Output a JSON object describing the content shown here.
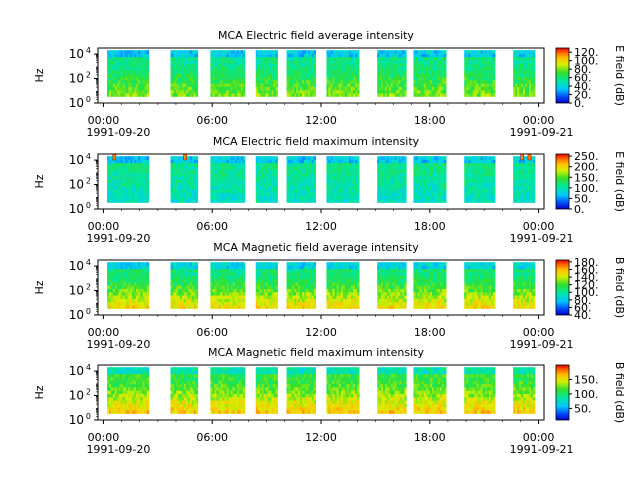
{
  "chart_data": [
    {
      "type": "heatmap",
      "title": "MCA  Electric field average intensity",
      "ylabel": "Hz",
      "yscale": "log",
      "ylim": [
        1,
        31623
      ],
      "yticks": [
        1,
        100,
        10000
      ],
      "ytick_labels": [
        {
          "base": "10",
          "exp": "0"
        },
        {
          "base": "10",
          "exp": "2"
        },
        {
          "base": "10",
          "exp": "4"
        }
      ],
      "x_ticks": [
        "00:00",
        "06:00",
        "12:00",
        "18:00",
        "00:00"
      ],
      "x_dates": [
        "1991-09-20",
        "1991-09-21"
      ],
      "colorbar": {
        "label": "E field (dB)",
        "ticks": [
          "0.",
          "20.",
          "40.",
          "60.",
          "80.",
          "100.",
          "120."
        ],
        "range": [
          0,
          130
        ]
      },
      "data_segments_hours": [
        [
          0.2,
          1.8
        ],
        [
          1.8,
          2.5
        ],
        [
          3.7,
          4.1
        ],
        [
          4.1,
          5.2
        ],
        [
          5.9,
          7.8
        ],
        [
          8.4,
          9.6
        ],
        [
          10.1,
          11.7
        ],
        [
          12.3,
          14.1
        ],
        [
          15.1,
          16.7
        ],
        [
          17.1,
          18.9
        ],
        [
          19.9,
          21.6
        ],
        [
          22.6,
          23.8
        ]
      ],
      "base_level": 55,
      "low_freq_level": 80,
      "spikes_hours": []
    },
    {
      "type": "heatmap",
      "title": "MCA  Electric field maximum intensity",
      "ylabel": "Hz",
      "yscale": "log",
      "ylim": [
        1,
        31623
      ],
      "yticks": [
        1,
        100,
        10000
      ],
      "ytick_labels": [
        {
          "base": "10",
          "exp": "0"
        },
        {
          "base": "10",
          "exp": "2"
        },
        {
          "base": "10",
          "exp": "4"
        }
      ],
      "x_ticks": [
        "00:00",
        "06:00",
        "12:00",
        "18:00",
        "00:00"
      ],
      "x_dates": [
        "1991-09-20",
        "1991-09-21"
      ],
      "colorbar": {
        "label": "E field (dB)",
        "ticks": [
          "0.",
          "50.",
          "100.",
          "150.",
          "200.",
          "250."
        ],
        "range": [
          0,
          260
        ]
      },
      "data_segments_hours": [
        [
          0.2,
          1.8
        ],
        [
          1.8,
          2.5
        ],
        [
          3.7,
          4.1
        ],
        [
          4.1,
          5.2
        ],
        [
          5.9,
          7.8
        ],
        [
          8.4,
          9.6
        ],
        [
          10.1,
          11.7
        ],
        [
          12.3,
          14.1
        ],
        [
          15.1,
          16.7
        ],
        [
          17.1,
          18.9
        ],
        [
          19.9,
          21.6
        ],
        [
          22.6,
          23.8
        ]
      ],
      "base_level": 110,
      "low_freq_level": 90,
      "spikes_hours": [
        0.6,
        4.5,
        23.1,
        23.5
      ]
    },
    {
      "type": "heatmap",
      "title": "MCA  Magnetic field average intensity",
      "ylabel": "Hz",
      "yscale": "log",
      "ylim": [
        1,
        31623
      ],
      "yticks": [
        1,
        100,
        10000
      ],
      "ytick_labels": [
        {
          "base": "10",
          "exp": "0"
        },
        {
          "base": "10",
          "exp": "2"
        },
        {
          "base": "10",
          "exp": "4"
        }
      ],
      "x_ticks": [
        "00:00",
        "06:00",
        "12:00",
        "18:00",
        "00:00"
      ],
      "x_dates": [
        "1991-09-20",
        "1991-09-21"
      ],
      "colorbar": {
        "label": "B field (dB)",
        "ticks": [
          "40.",
          "60.",
          "80.",
          "100.",
          "120.",
          "140.",
          "160.",
          "180."
        ],
        "range": [
          40,
          185
        ]
      },
      "data_segments_hours": [
        [
          0.2,
          1.8
        ],
        [
          1.8,
          2.5
        ],
        [
          3.7,
          4.1
        ],
        [
          4.1,
          5.2
        ],
        [
          5.9,
          7.8
        ],
        [
          8.4,
          9.6
        ],
        [
          10.1,
          11.7
        ],
        [
          12.3,
          14.1
        ],
        [
          15.1,
          16.7
        ],
        [
          17.1,
          18.9
        ],
        [
          19.9,
          21.6
        ],
        [
          22.6,
          23.8
        ]
      ],
      "base_level": 105,
      "low_freq_level": 150,
      "spikes_hours": []
    },
    {
      "type": "heatmap",
      "title": "MCA  Magnetic field maximum intensity",
      "ylabel": "Hz",
      "yscale": "log",
      "ylim": [
        1,
        31623
      ],
      "yticks": [
        1,
        100,
        10000
      ],
      "ytick_labels": [
        {
          "base": "10",
          "exp": "0"
        },
        {
          "base": "10",
          "exp": "2"
        },
        {
          "base": "10",
          "exp": "4"
        }
      ],
      "x_ticks": [
        "00:00",
        "06:00",
        "12:00",
        "18:00",
        "00:00"
      ],
      "x_dates": [
        "1991-09-20",
        "1991-09-21"
      ],
      "colorbar": {
        "label": "B field (dB)",
        "ticks": [
          "50.",
          "100.",
          "150."
        ],
        "range": [
          10,
          200
        ]
      },
      "data_segments_hours": [
        [
          0.2,
          1.8
        ],
        [
          1.8,
          2.5
        ],
        [
          3.7,
          4.1
        ],
        [
          4.1,
          5.2
        ],
        [
          5.9,
          7.8
        ],
        [
          8.4,
          9.6
        ],
        [
          10.1,
          11.7
        ],
        [
          12.3,
          14.1
        ],
        [
          15.1,
          16.7
        ],
        [
          17.1,
          18.9
        ],
        [
          19.9,
          21.6
        ],
        [
          22.6,
          23.8
        ]
      ],
      "base_level": 110,
      "low_freq_level": 160,
      "spikes_hours": []
    }
  ]
}
